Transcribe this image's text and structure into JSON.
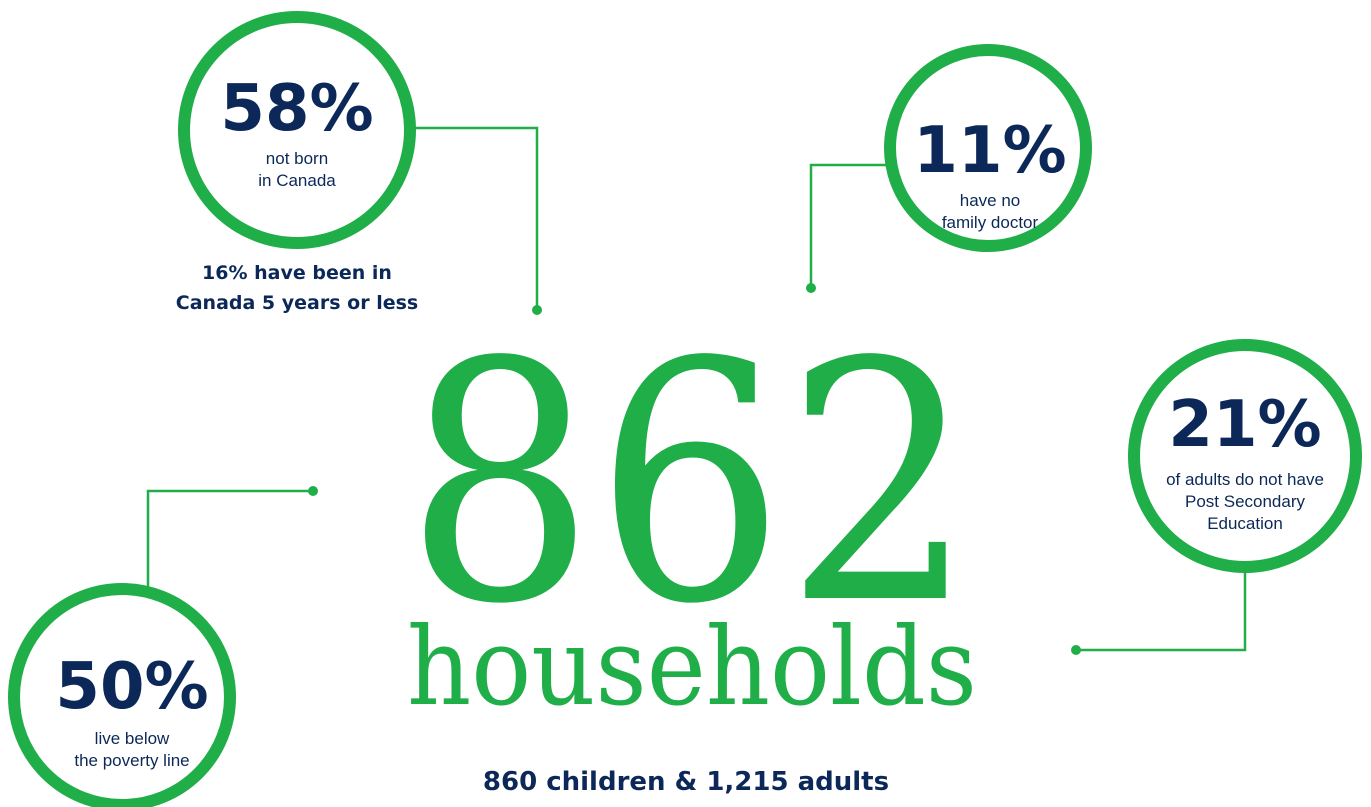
{
  "headline": {
    "number": "862",
    "unit": "households",
    "detail": "860 children & 1,215 adults"
  },
  "stats": [
    {
      "value": "58%",
      "lines": [
        "not born",
        "in Canada"
      ],
      "note": [
        "16% have been in",
        "Canada 5 years or less"
      ]
    },
    {
      "value": "11%",
      "lines": [
        "have no",
        "family doctor"
      ]
    },
    {
      "value": "21%",
      "lines": [
        "of adults do not have",
        "Post Secondary",
        "Education"
      ]
    },
    {
      "value": "50%",
      "lines": [
        "live below",
        "the poverty line"
      ]
    }
  ]
}
